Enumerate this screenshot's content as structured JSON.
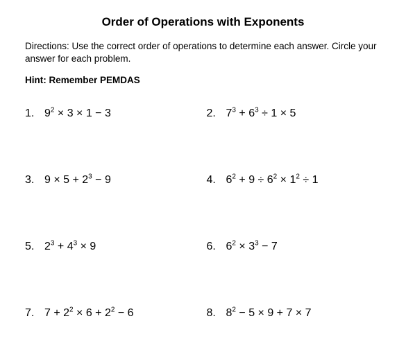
{
  "title": "Order of Operations with Exponents",
  "directions": "Directions: Use the correct order of operations to determine each answer. Circle your answer for each problem.",
  "hint": "Hint: Remember PEMDAS",
  "problems": [
    {
      "n": "1.",
      "tokens": [
        "9",
        {
          "sup": "2"
        },
        " × 3 × 1 − 3"
      ]
    },
    {
      "n": "2.",
      "tokens": [
        "7",
        {
          "sup": "3"
        },
        " + 6",
        {
          "sup": "3"
        },
        " ÷ 1 × 5"
      ]
    },
    {
      "n": "3.",
      "tokens": [
        "9 × 5 + 2",
        {
          "sup": "3"
        },
        " − 9"
      ]
    },
    {
      "n": "4.",
      "tokens": [
        "6",
        {
          "sup": "2"
        },
        " + 9 ÷ 6",
        {
          "sup": "2"
        },
        " × 1",
        {
          "sup": "2"
        },
        " ÷ 1"
      ]
    },
    {
      "n": "5.",
      "tokens": [
        "2",
        {
          "sup": "3"
        },
        " + 4",
        {
          "sup": "3"
        },
        " × 9"
      ]
    },
    {
      "n": "6.",
      "tokens": [
        "6",
        {
          "sup": "2"
        },
        " × 3",
        {
          "sup": "3"
        },
        " − 7"
      ]
    },
    {
      "n": "7.",
      "tokens": [
        "7 + 2",
        {
          "sup": "2"
        },
        " × 6 + 2",
        {
          "sup": "2"
        },
        " − 6"
      ]
    },
    {
      "n": "8.",
      "tokens": [
        "8",
        {
          "sup": "2"
        },
        " − 5 × 9 + 7 × 7"
      ]
    }
  ]
}
